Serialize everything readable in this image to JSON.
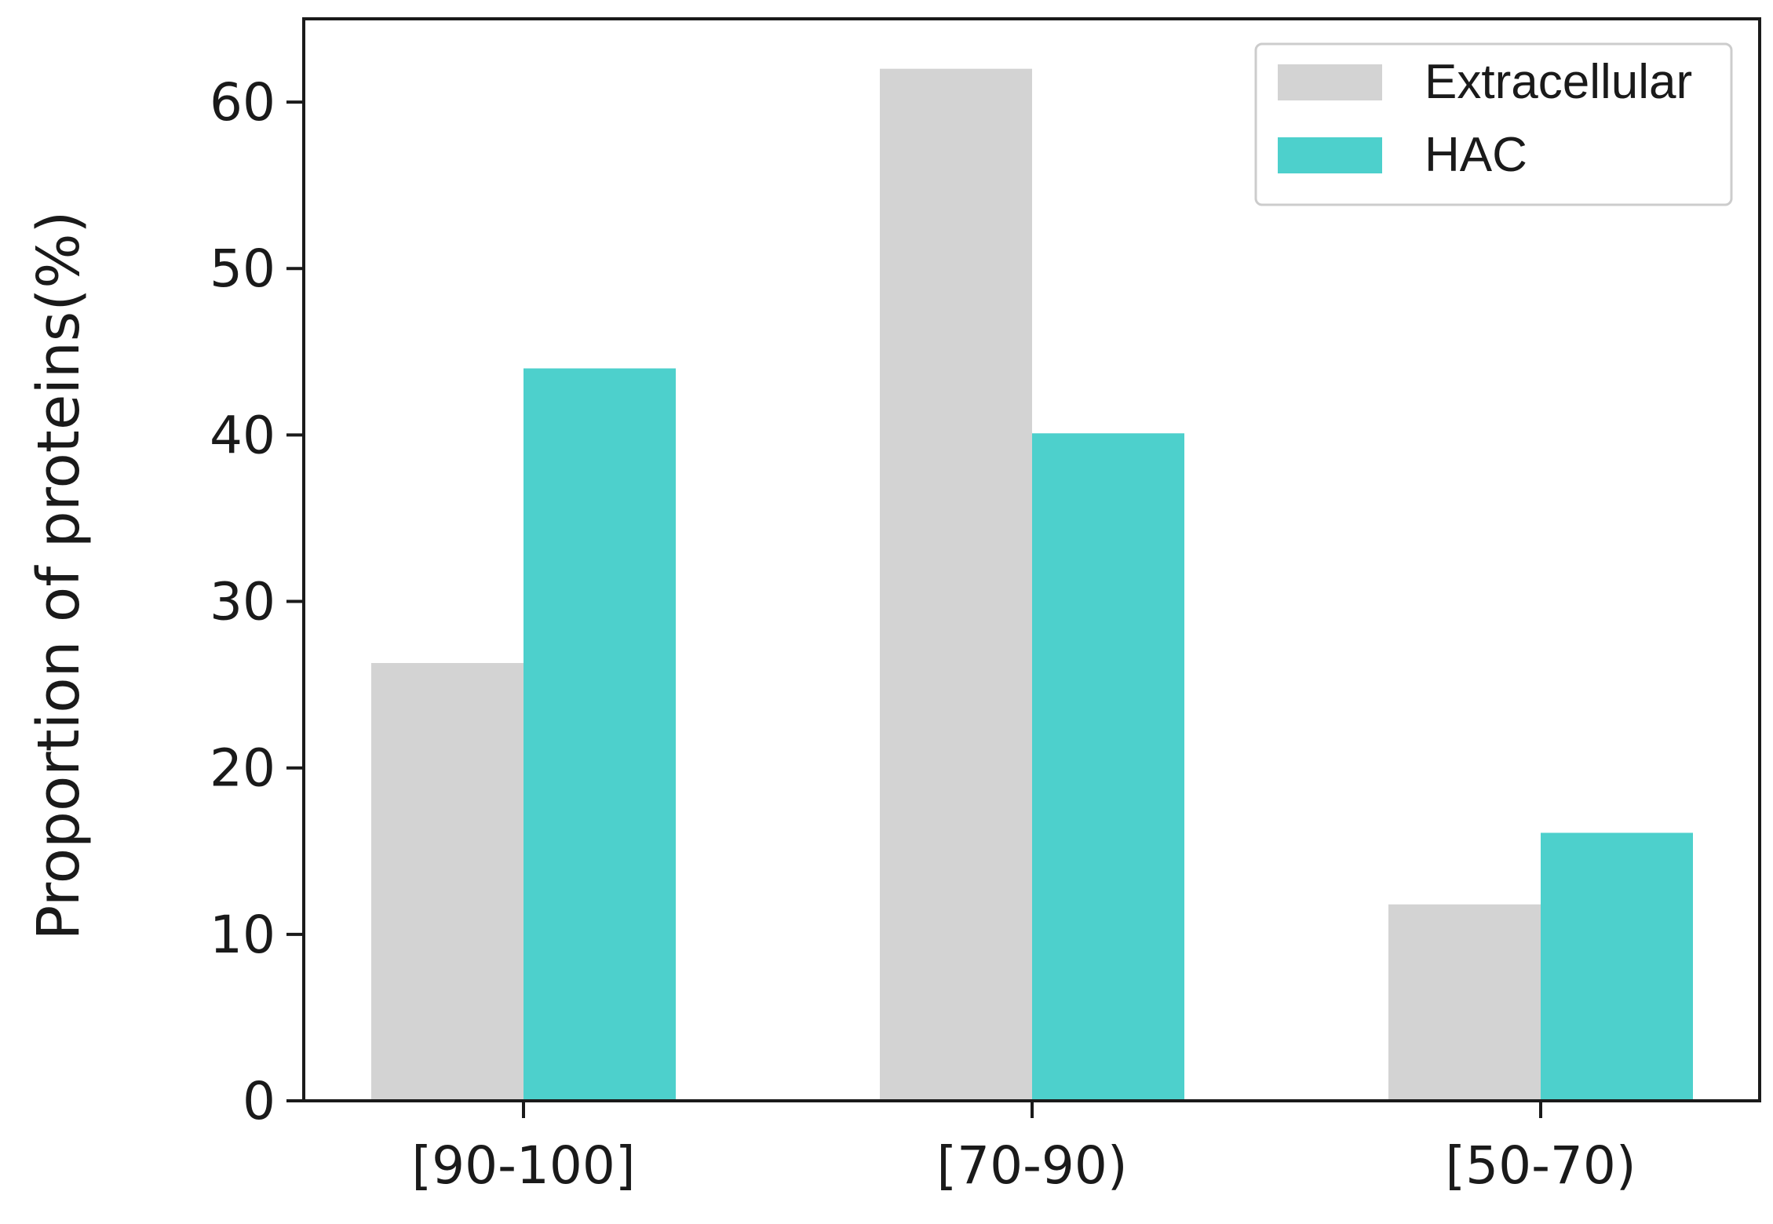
{
  "chart_data": {
    "type": "bar",
    "categories": [
      "[90-100]",
      "[70-90)",
      "[50-70)"
    ],
    "series": [
      {
        "name": "Extracellular",
        "values": [
          26.3,
          62.0,
          11.8
        ],
        "color": "#d3d3d3"
      },
      {
        "name": "HAC",
        "values": [
          44.0,
          40.1,
          16.1
        ],
        "color": "#4dd0cc"
      }
    ],
    "ylabel": "Proportion of proteins(%)",
    "xlabel": "",
    "ylim": [
      0,
      65
    ],
    "yticks": [
      0,
      10,
      20,
      30,
      40,
      50,
      60
    ],
    "grid": false,
    "legend_position": "top-right"
  }
}
